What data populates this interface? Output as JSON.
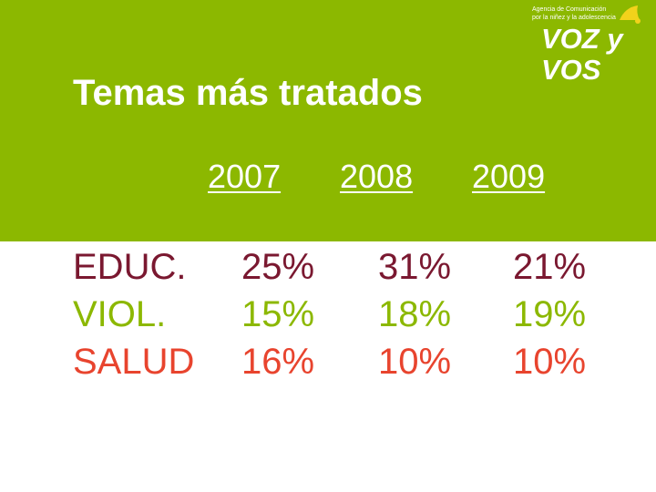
{
  "logo": {
    "tagline": "Agencia de Comunicación\npor la niñez y la adolescencia",
    "word": "VOZ y VOS"
  },
  "title": "Temas más tratados",
  "years": [
    "2007",
    "2008",
    "2009"
  ],
  "rows": [
    {
      "label": "EDUC.",
      "values": [
        "25%",
        "31%",
        "21%"
      ]
    },
    {
      "label": "VIOL.",
      "values": [
        "15%",
        "18%",
        "19%"
      ]
    },
    {
      "label": "SALUD",
      "values": [
        "16%",
        "10%",
        "10%"
      ]
    }
  ],
  "colors": {
    "band": "#8cb800",
    "educ": "#7a1830",
    "viol": "#8cb800",
    "salud": "#e8442e"
  }
}
